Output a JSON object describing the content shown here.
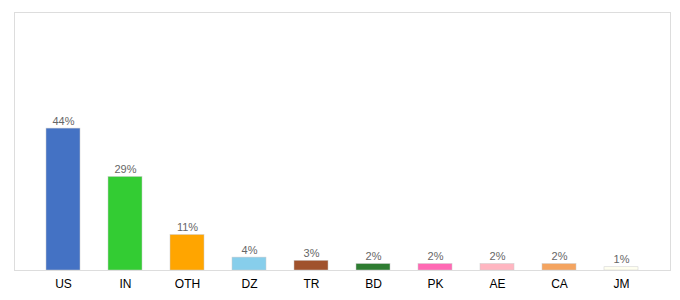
{
  "chart_data": {
    "type": "bar",
    "categories": [
      "US",
      "IN",
      "OTH",
      "DZ",
      "TR",
      "BD",
      "PK",
      "AE",
      "CA",
      "JM"
    ],
    "values": [
      44,
      29,
      11,
      4,
      3,
      2,
      2,
      2,
      2,
      1
    ],
    "value_labels": [
      "44%",
      "29%",
      "11%",
      "4%",
      "3%",
      "2%",
      "2%",
      "2%",
      "2%",
      "1%"
    ],
    "colors": [
      "#4472C4",
      "#33CC33",
      "#FFA500",
      "#87CEEB",
      "#A0522D",
      "#2E7D32",
      "#FF69B4",
      "#FFB6C1",
      "#F4A460",
      "#FFFFF0"
    ],
    "ylim": [
      0,
      80
    ],
    "data_labels": true,
    "tick_labels": "x",
    "grid": false
  }
}
